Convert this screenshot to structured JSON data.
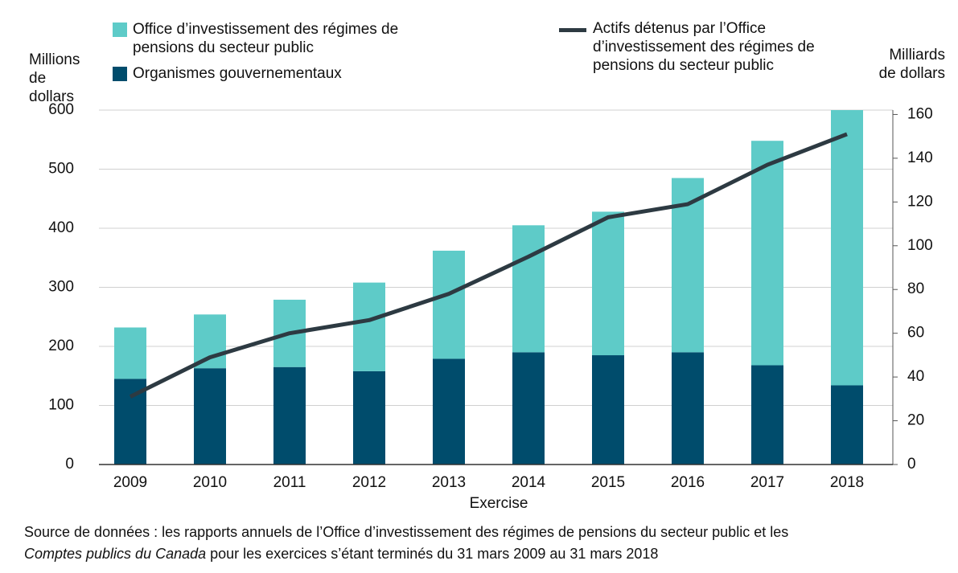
{
  "chart_data": {
    "type": "bar",
    "categories": [
      "2009",
      "2010",
      "2011",
      "2012",
      "2013",
      "2014",
      "2015",
      "2016",
      "2017",
      "2018"
    ],
    "series": [
      {
        "name": "Organismes gouvernementaux",
        "color": "#004c6c",
        "values": [
          145,
          163,
          165,
          158,
          179,
          190,
          185,
          190,
          168,
          134
        ]
      },
      {
        "name": "Office d’investissement des régimes de pensions du secteur public",
        "color": "#5ecbc8",
        "values": [
          87,
          91,
          114,
          150,
          183,
          215,
          243,
          295,
          380,
          466
        ]
      },
      {
        "name": "Actifs détenus par l’Office d’investissement des régimes de pensions du secteur public",
        "color": "#2d3a42",
        "type": "line",
        "axis": "y2",
        "values": [
          31,
          49,
          60,
          66,
          78,
          95,
          113,
          119,
          137,
          151
        ]
      }
    ],
    "stacked": true,
    "ylabel": "Millions de dollars",
    "y2label": "Milliards de dollars",
    "xlabel": "Exercise",
    "ylim": [
      0,
      600
    ],
    "yticks": [
      0,
      100,
      200,
      300,
      400,
      500,
      600
    ],
    "y2lim": [
      0,
      162
    ],
    "y2ticks": [
      0,
      20,
      40,
      60,
      80,
      100,
      120,
      140,
      160
    ],
    "grid": true,
    "source": {
      "line1": "Source de données : les rapports annuels de l’Office d’investissement des régimes de pensions du secteur public et les",
      "line2_italic": "Comptes publics du Canada",
      "line2": "pour les exercices s’étant terminés du 31 mars 2009 au 31 mars 2018"
    }
  }
}
